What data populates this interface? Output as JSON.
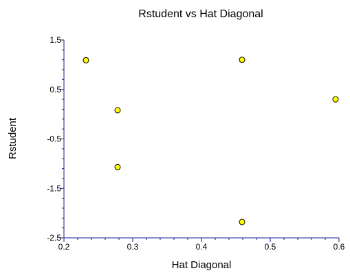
{
  "chart_data": {
    "type": "scatter",
    "title": "Rstudent vs Hat Diagonal",
    "xlabel": "Hat Diagonal",
    "ylabel": "Rstudent",
    "xlim": [
      0.2,
      0.6
    ],
    "ylim": [
      -2.5,
      1.5
    ],
    "x_ticks": [
      "0.2",
      "0.3",
      "0.4",
      "0.5",
      "0.6"
    ],
    "y_ticks": [
      "1.5",
      "0.5",
      "-0.5",
      "-1.5",
      "-2.5"
    ],
    "grid": false,
    "series": [
      {
        "points": [
          {
            "x": 0.232,
            "y": 1.09
          },
          {
            "x": 0.278,
            "y": 0.08
          },
          {
            "x": 0.278,
            "y": -1.07
          },
          {
            "x": 0.459,
            "y": 1.1
          },
          {
            "x": 0.459,
            "y": -2.18
          },
          {
            "x": 0.595,
            "y": 0.3
          }
        ]
      }
    ],
    "colors": {
      "axis": "#1a1a8c",
      "marker_fill": "#ffff00",
      "marker_stroke": "#000000"
    }
  }
}
